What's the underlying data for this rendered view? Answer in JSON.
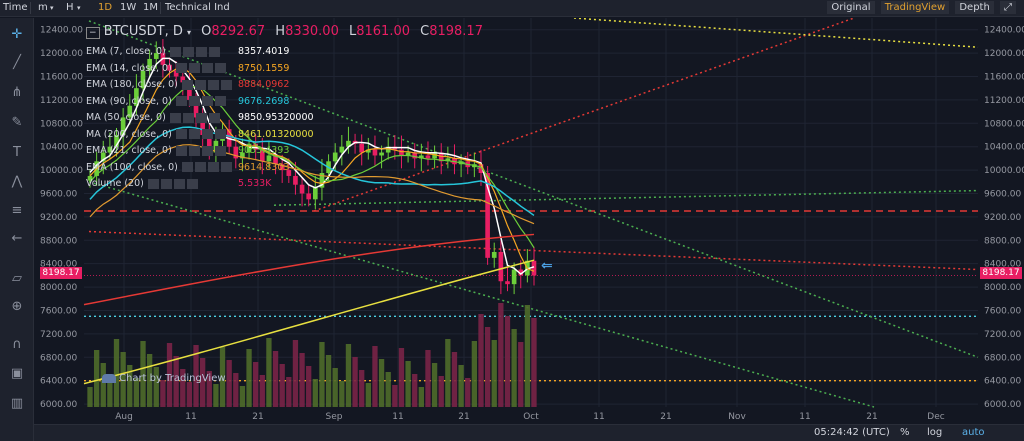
{
  "toolbar": {
    "time_label": "Time",
    "minutes_label": "m",
    "hours_label": "H",
    "interval_1d": "1D",
    "interval_1w": "1W",
    "interval_1m": "1M",
    "indicators_label": "Technical Ind",
    "views": [
      "Original",
      "TradingView",
      "Depth"
    ],
    "active_view": "TradingView",
    "expand_icon": "expand-icon"
  },
  "sidebar_tools": [
    "crosshair-icon",
    "trendline-icon",
    "pitchfork-icon",
    "brush-icon",
    "text-icon",
    "pattern-icon",
    "fib-icon",
    "back-arrow-icon",
    "ruler-icon",
    "zoom-icon",
    "magnet-icon",
    "lock-icon",
    "trash-icon"
  ],
  "legend": {
    "symbol": "BTCUSDT, D",
    "open_label": "O",
    "open": "8292.67",
    "high_label": "H",
    "high": "8330.00",
    "low_label": "L",
    "low": "8161.00",
    "close_label": "C",
    "close": "8198.17",
    "indicators": [
      {
        "name": "EMA (7, close, 0)",
        "value": "8357.4019",
        "color": "#ffffff"
      },
      {
        "name": "EMA (14, close, 0)",
        "value": "8750.1559",
        "color": "#f5a623"
      },
      {
        "name": "EMA (180, close, 0)",
        "value": "8884.0962",
        "color": "#e53935"
      },
      {
        "name": "EMA (90, close, 0)",
        "value": "9676.2698",
        "color": "#26c6da"
      },
      {
        "name": "MA (50, close, 0)",
        "value": "9850.95320000",
        "color": "#ffffff"
      },
      {
        "name": "MA (200, close, 0)",
        "value": "8461.01320000",
        "color": "#e8e040"
      },
      {
        "name": "EMA (21, close, 0)",
        "value": "9053.4393",
        "color": "#6ccf3a"
      },
      {
        "name": "EMA (100, close, 0)",
        "value": "9614.8303",
        "color": "#e09a30"
      },
      {
        "name": "Volume (20)",
        "value": "5.533K",
        "color": "#e91e63"
      }
    ]
  },
  "price_tag": "8198.17",
  "watermark": "Chart by TradingView",
  "bottom": {
    "clock": "05:24:42 (UTC)",
    "percent": "%",
    "log": "log",
    "auto": "auto"
  },
  "chart_data": {
    "type": "candlestick",
    "title": "BTCUSDT, D",
    "y_ticks": [
      12400,
      12000,
      11600,
      11200,
      10800,
      10400,
      10000,
      9600,
      9200,
      8800,
      8400,
      8000,
      7600,
      7200,
      6800,
      6400,
      6000
    ],
    "ylim": [
      5950,
      12600
    ],
    "x_ticks": [
      "Aug",
      "11",
      "21",
      "Sep",
      "11",
      "21",
      "Oct",
      "11",
      "21",
      "Nov",
      "11",
      "21",
      "Dec"
    ],
    "last_price": 8198.17,
    "candles_close": [
      9900,
      10150,
      10300,
      10400,
      10600,
      10900,
      11100,
      11400,
      11700,
      11900,
      12000,
      11800,
      11700,
      11600,
      11500,
      11200,
      10900,
      10600,
      10300,
      10500,
      10700,
      10400,
      10200,
      10300,
      10450,
      10350,
      10150,
      10250,
      10100,
      10000,
      9900,
      9750,
      9600,
      9500,
      9700,
      9950,
      10150,
      10300,
      10400,
      10500,
      10450,
      10300,
      10350,
      10250,
      10300,
      10400,
      10350,
      10250,
      10300,
      10200,
      10250,
      10200,
      10300,
      10150,
      10200,
      10100,
      10150,
      10050,
      10100,
      9950,
      8500,
      8600,
      8100,
      8050,
      8300,
      8200,
      8450,
      8198
    ],
    "horizontal_levels": [
      {
        "value": 9300,
        "color": "#e53935",
        "style": "dashed"
      },
      {
        "value": 7500,
        "color": "#4dd0e1",
        "style": "dotted"
      },
      {
        "value": 6400,
        "color": "#f5a623",
        "style": "dotted"
      }
    ]
  }
}
